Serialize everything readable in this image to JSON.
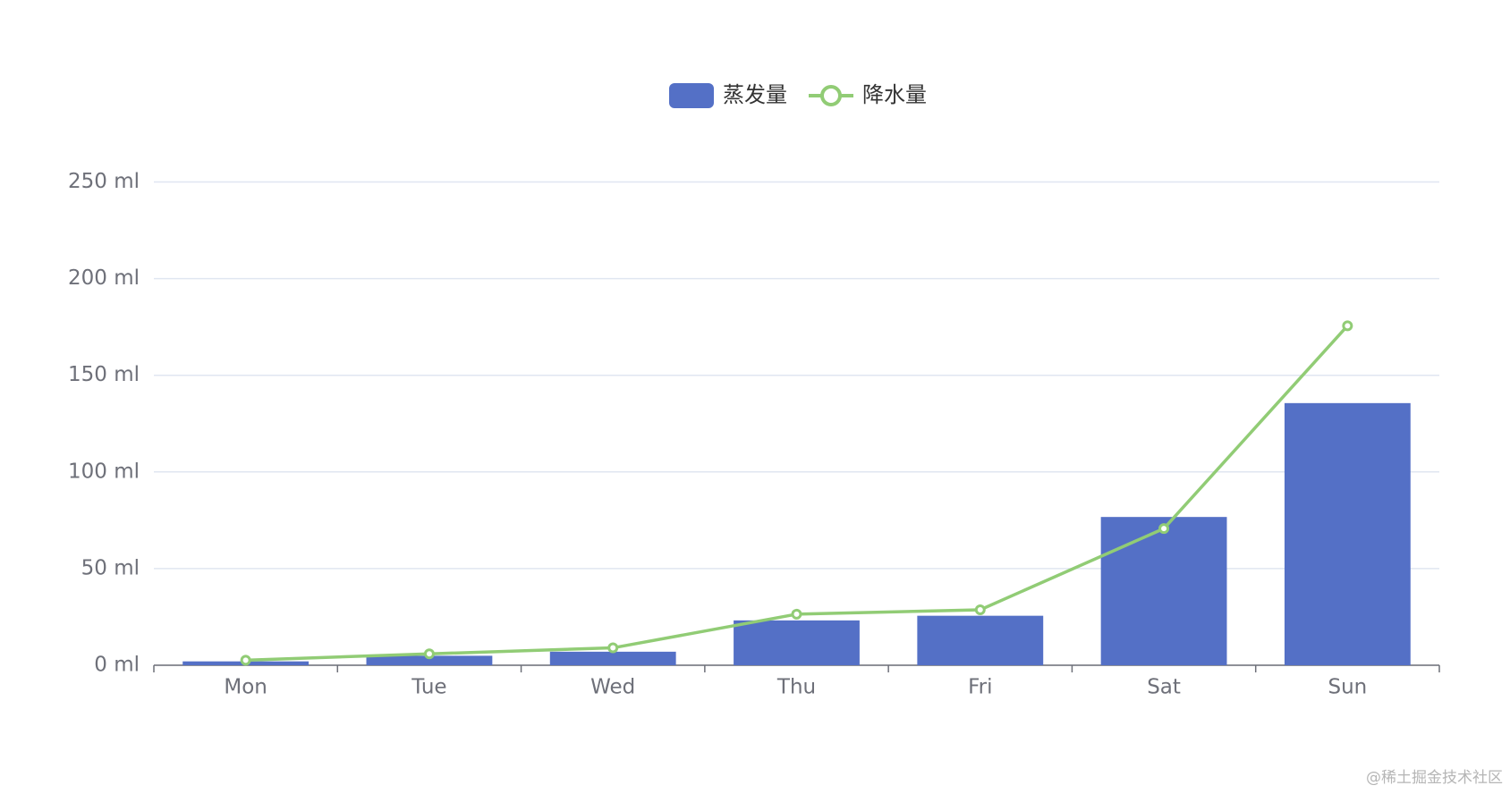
{
  "chart_data": {
    "type": "bar-line",
    "categories": [
      "Mon",
      "Tue",
      "Wed",
      "Thu",
      "Fri",
      "Sat",
      "Sun"
    ],
    "series": [
      {
        "name": "蒸发量",
        "type": "bar",
        "color": "#5470c6",
        "values": [
          2.0,
          4.9,
          7.0,
          23.2,
          25.6,
          76.7,
          135.6
        ]
      },
      {
        "name": "降水量",
        "type": "line",
        "color": "#91cc75",
        "values": [
          2.6,
          5.9,
          9.0,
          26.4,
          28.7,
          70.7,
          175.6
        ]
      }
    ],
    "ylim": [
      0,
      250
    ],
    "yticks": [
      {
        "value": 0,
        "label": "0 ml"
      },
      {
        "value": 50,
        "label": "50 ml"
      },
      {
        "value": 100,
        "label": "100 ml"
      },
      {
        "value": 150,
        "label": "150 ml"
      },
      {
        "value": 200,
        "label": "200 ml"
      },
      {
        "value": 250,
        "label": "250 ml"
      }
    ],
    "grid": true,
    "legend_position": "top",
    "watermark": "@稀土掘金技术社区"
  }
}
